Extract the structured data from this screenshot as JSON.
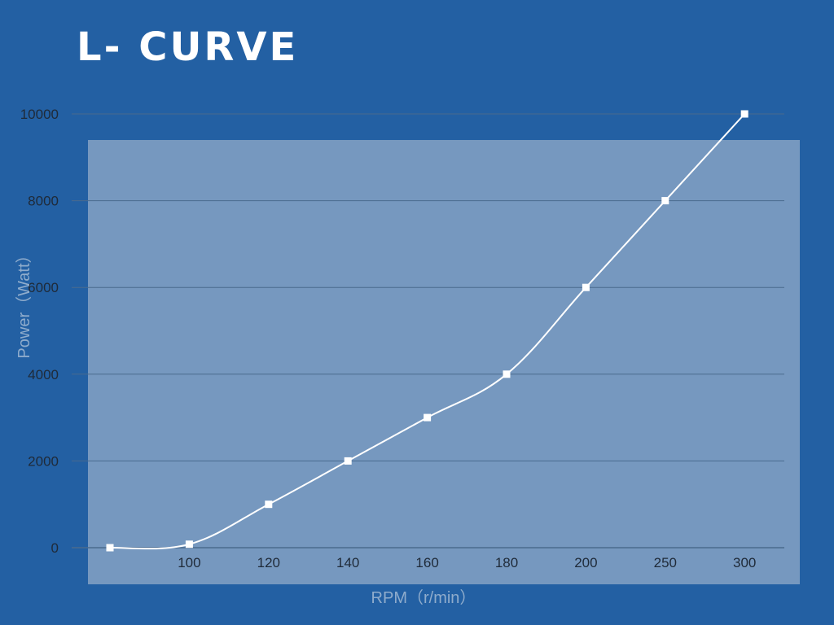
{
  "title": "L- CURVE",
  "colors": {
    "background": "#2360a3",
    "panel": "#7698bf",
    "line": "#ffffff",
    "gridline": "#4a6a8e",
    "tick_label": "#1f2a38",
    "axis_label": "#8faccc"
  },
  "chart_data": {
    "type": "line",
    "title": "L- CURVE",
    "xlabel": "RPM（r/min）",
    "ylabel": "Power（Watt）",
    "categories": [
      "",
      "100",
      "120",
      "140",
      "160",
      "180",
      "200",
      "250",
      "300"
    ],
    "series": [
      {
        "values": [
          0,
          80,
          1000,
          2000,
          3000,
          4000,
          6000,
          8000,
          10000
        ]
      }
    ],
    "yticks": [
      "0",
      "2000",
      "4000",
      "6000",
      "8000",
      "10000"
    ],
    "ylim": [
      0,
      10000
    ],
    "grid": "horizontal",
    "smooth": true,
    "markers": "square",
    "legend": "none"
  }
}
